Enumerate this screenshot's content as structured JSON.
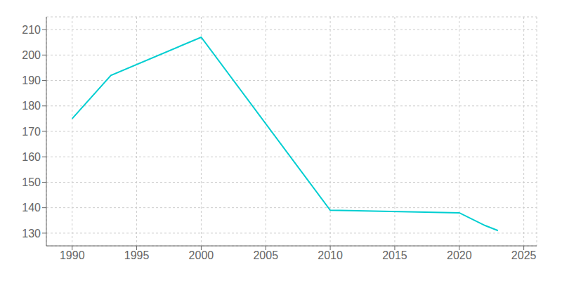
{
  "chart_data": {
    "type": "line",
    "x": [
      1990,
      1993,
      2000,
      2010,
      2020,
      2022,
      2023
    ],
    "values": [
      175,
      192,
      207,
      139,
      138,
      133,
      131
    ],
    "color": "#00CED1",
    "xlim": [
      1988,
      2026
    ],
    "ylim": [
      125,
      215
    ],
    "xticks": [
      1990,
      1995,
      2000,
      2005,
      2010,
      2015,
      2020,
      2025
    ],
    "yticks": [
      130,
      140,
      150,
      160,
      170,
      180,
      190,
      200,
      210
    ],
    "grid": true
  }
}
